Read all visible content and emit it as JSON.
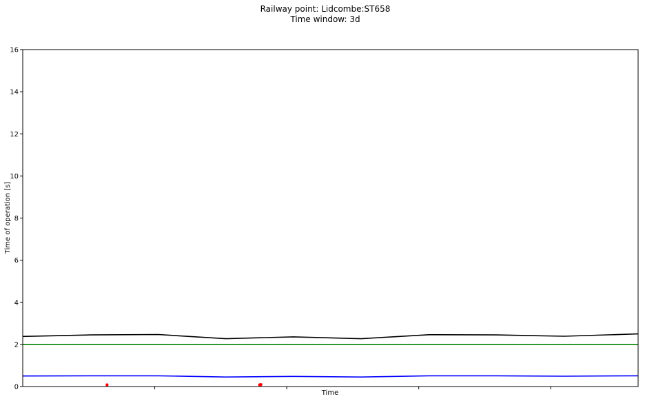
{
  "chart_data": {
    "type": "line",
    "title": "Railway point: Lidcombe:ST658",
    "subtitle": "Time window: 3d",
    "xlabel": "Time",
    "ylabel": "Time of operation [s]",
    "ylim": [
      0,
      16
    ],
    "yticks": [
      "0",
      "2",
      "4",
      "6",
      "8",
      "10",
      "12",
      "14",
      "16"
    ],
    "xlim": [
      0,
      10
    ],
    "xticks_count": 4,
    "grid": false,
    "series": [
      {
        "color": "#000000",
        "x": [
          0,
          1.1,
          2.2,
          3.3,
          4.4,
          5.5,
          6.6,
          7.7,
          8.8,
          10
        ],
        "values": [
          2.38,
          2.45,
          2.47,
          2.27,
          2.36,
          2.27,
          2.46,
          2.45,
          2.39,
          2.5
        ]
      },
      {
        "color": "#008000",
        "x": [
          0,
          10
        ],
        "values": [
          2.0,
          2.0
        ]
      },
      {
        "color": "#0000ff",
        "x": [
          0,
          1.1,
          2.2,
          3.3,
          4.4,
          5.5,
          6.6,
          7.7,
          8.8,
          10
        ],
        "values": [
          0.5,
          0.51,
          0.51,
          0.45,
          0.48,
          0.45,
          0.51,
          0.51,
          0.49,
          0.51
        ]
      }
    ],
    "points": {
      "color": "#ff0000",
      "x": [
        1.37,
        3.85,
        3.87
      ],
      "values": [
        0.08,
        0.08,
        0.09
      ]
    }
  }
}
